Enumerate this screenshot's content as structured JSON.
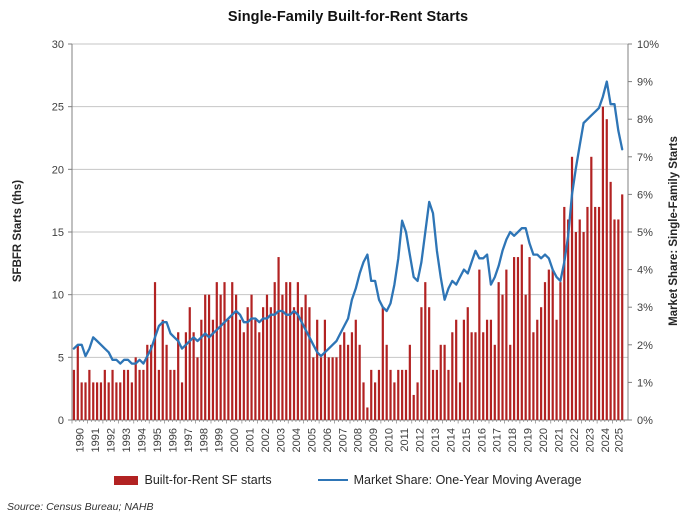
{
  "title": "Single-Family Built-for-Rent Starts",
  "source": "Source: Census Bureau; NAHB",
  "colors": {
    "bar": "#b22222",
    "line": "#2e75b6",
    "grid": "#c6c6c6",
    "axis": "#808080",
    "tick_text": "#3f3f3f"
  },
  "left_axis": {
    "label": "SFBFR Starts (ths)",
    "ticks": [
      "0",
      "5",
      "10",
      "15",
      "20",
      "25",
      "30"
    ],
    "min": 0,
    "max": 30
  },
  "right_axis": {
    "label": "Market Share: Single-Family Starts",
    "ticks": [
      "0%",
      "1%",
      "2%",
      "3%",
      "4%",
      "5%",
      "6%",
      "7%",
      "8%",
      "9%",
      "10%"
    ],
    "min": 0,
    "max": 10
  },
  "x_axis": {
    "years": [
      "1990",
      "1991",
      "1992",
      "1993",
      "1994",
      "1995",
      "1996",
      "1997",
      "1998",
      "1999",
      "2000",
      "2001",
      "2002",
      "2003",
      "2004",
      "2005",
      "2006",
      "2007",
      "2008",
      "2009",
      "2010",
      "2011",
      "2012",
      "2013",
      "2014",
      "2015",
      "2016",
      "2017",
      "2018",
      "2019",
      "2020",
      "2021",
      "2022",
      "2023",
      "2024",
      "2025"
    ]
  },
  "legend": [
    {
      "label": "Built-for-Rent SF starts",
      "type": "bar",
      "color": "#b22222"
    },
    {
      "label": "Market Share: One-Year Moving Average",
      "type": "line",
      "color": "#2e75b6"
    }
  ],
  "chart_data": {
    "type": "bar+line",
    "title": "Single-Family Built-for-Rent Starts",
    "x_unit": "quarter",
    "start": "1990Q1",
    "end": "2025Q3",
    "grid": true,
    "legend_position": "bottom",
    "left_ylim": [
      0,
      30
    ],
    "right_ylim": [
      0,
      10
    ],
    "series": [
      {
        "name": "Built-for-Rent SF starts",
        "type": "bar",
        "axis": "left",
        "units": "thousands of starts",
        "color": "#b22222",
        "values": [
          4,
          6,
          3,
          3,
          4,
          3,
          3,
          3,
          4,
          3,
          4,
          3,
          3,
          4,
          4,
          3,
          5,
          4,
          4,
          6,
          6,
          11,
          4,
          8,
          6,
          4,
          4,
          7,
          3,
          7,
          9,
          7,
          5,
          8,
          10,
          10,
          8,
          11,
          10,
          11,
          8,
          11,
          10,
          8,
          7,
          9,
          10,
          8,
          7,
          9,
          10,
          9,
          11,
          13,
          10,
          11,
          11,
          9,
          11,
          9,
          10,
          9,
          5,
          8,
          5,
          8,
          5,
          5,
          5,
          6,
          7,
          6,
          7,
          8,
          6,
          3,
          1,
          4,
          3,
          4,
          9,
          6,
          4,
          3,
          4,
          4,
          4,
          6,
          2,
          3,
          9,
          11,
          9,
          4,
          4,
          6,
          6,
          4,
          7,
          8,
          3,
          8,
          9,
          7,
          7,
          12,
          7,
          8,
          8,
          6,
          11,
          10,
          12,
          6,
          13,
          13,
          14,
          10,
          13,
          7,
          8,
          9,
          11,
          12,
          12,
          8,
          11,
          17,
          16,
          21,
          15,
          16,
          15,
          17,
          21,
          17,
          17,
          25,
          24,
          19,
          16,
          16,
          18
        ]
      },
      {
        "name": "Market Share: One-Year Moving Average",
        "type": "line",
        "axis": "right",
        "units": "percent",
        "color": "#2e75b6",
        "values": [
          1.9,
          2.0,
          2.0,
          1.7,
          1.9,
          2.2,
          2.1,
          2.0,
          1.9,
          1.8,
          1.6,
          1.6,
          1.5,
          1.6,
          1.6,
          1.5,
          1.5,
          1.6,
          1.5,
          1.7,
          1.9,
          2.2,
          2.5,
          2.6,
          2.6,
          2.3,
          2.2,
          2.1,
          1.9,
          2.0,
          2.1,
          2.2,
          2.1,
          2.2,
          2.3,
          2.2,
          2.3,
          2.4,
          2.5,
          2.6,
          2.7,
          2.8,
          2.9,
          2.8,
          2.6,
          2.6,
          2.7,
          2.7,
          2.6,
          2.7,
          2.7,
          2.8,
          2.8,
          2.9,
          2.9,
          2.8,
          2.8,
          2.9,
          2.8,
          2.6,
          2.4,
          2.2,
          2.0,
          1.8,
          1.7,
          1.8,
          1.9,
          2.0,
          2.1,
          2.3,
          2.5,
          2.7,
          3.2,
          3.5,
          3.9,
          4.2,
          4.4,
          3.7,
          3.7,
          3.2,
          3.0,
          2.9,
          3.1,
          3.6,
          4.3,
          5.3,
          5.0,
          4.4,
          3.8,
          3.7,
          4.2,
          5.0,
          5.8,
          5.5,
          4.5,
          3.8,
          3.2,
          3.5,
          3.7,
          3.6,
          3.8,
          4.0,
          3.9,
          4.2,
          4.5,
          4.3,
          4.3,
          4.4,
          3.6,
          3.8,
          4.1,
          4.5,
          4.8,
          5.0,
          4.9,
          5.0,
          5.1,
          5.1,
          4.7,
          4.4,
          4.4,
          4.3,
          4.4,
          4.3,
          4.0,
          3.8,
          3.7,
          4.2,
          4.9,
          6.0,
          6.7,
          7.3,
          7.9,
          8.0,
          8.1,
          8.2,
          8.3,
          8.6,
          9.0,
          8.4,
          8.4,
          7.7,
          7.2
        ]
      }
    ]
  }
}
